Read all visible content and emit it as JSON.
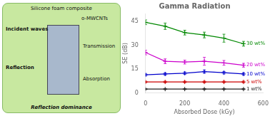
{
  "chart_data": {
    "type": "line",
    "title": "Gamma Radiation",
    "xlabel": "Absorbed Dose (kGy)",
    "ylabel": "SE (dB)",
    "x": [
      0,
      100,
      200,
      300,
      400,
      500
    ],
    "series": [
      {
        "name": "30 wt%",
        "color": "#008800",
        "values": [
          44.5,
          42.0,
          38.0,
          36.5,
          34.5,
          31.0
        ],
        "yerr": [
          1.5,
          2.0,
          1.5,
          1.8,
          2.5,
          1.5
        ]
      },
      {
        "name": "20 wt%",
        "color": "#cc00cc",
        "values": [
          25.5,
          20.0,
          19.5,
          20.0,
          19.0,
          17.5
        ],
        "yerr": [
          1.5,
          1.5,
          1.2,
          2.5,
          1.5,
          1.2
        ]
      },
      {
        "name": "10 wt%",
        "color": "#0000cc",
        "values": [
          11.5,
          12.0,
          12.5,
          13.5,
          12.8,
          12.0
        ],
        "yerr": [
          0.8,
          0.8,
          0.8,
          1.0,
          0.8,
          0.8
        ]
      },
      {
        "name": "5 wt%",
        "color": "#cc0000",
        "values": [
          7.0,
          7.0,
          7.0,
          7.0,
          7.0,
          7.0
        ],
        "yerr": [
          0.5,
          0.5,
          0.5,
          0.5,
          0.5,
          0.5
        ]
      },
      {
        "name": "1 wt%",
        "color": "#222222",
        "values": [
          2.5,
          2.5,
          2.5,
          2.5,
          2.5,
          2.5
        ],
        "yerr": [
          0.3,
          0.3,
          0.3,
          0.3,
          0.3,
          0.3
        ]
      }
    ],
    "xlim": [
      0,
      600
    ],
    "ylim": [
      0,
      50
    ],
    "xticks": [
      0,
      200,
      400,
      600
    ],
    "yticks": [
      0,
      15,
      30,
      45
    ],
    "grid": false,
    "marker": "plus",
    "annotations": [
      "Silicone foam composite",
      "o-MWCNTs",
      "Incident waves",
      "Transmission",
      "Reflection",
      "Absorption",
      "Reflection dominance"
    ]
  }
}
